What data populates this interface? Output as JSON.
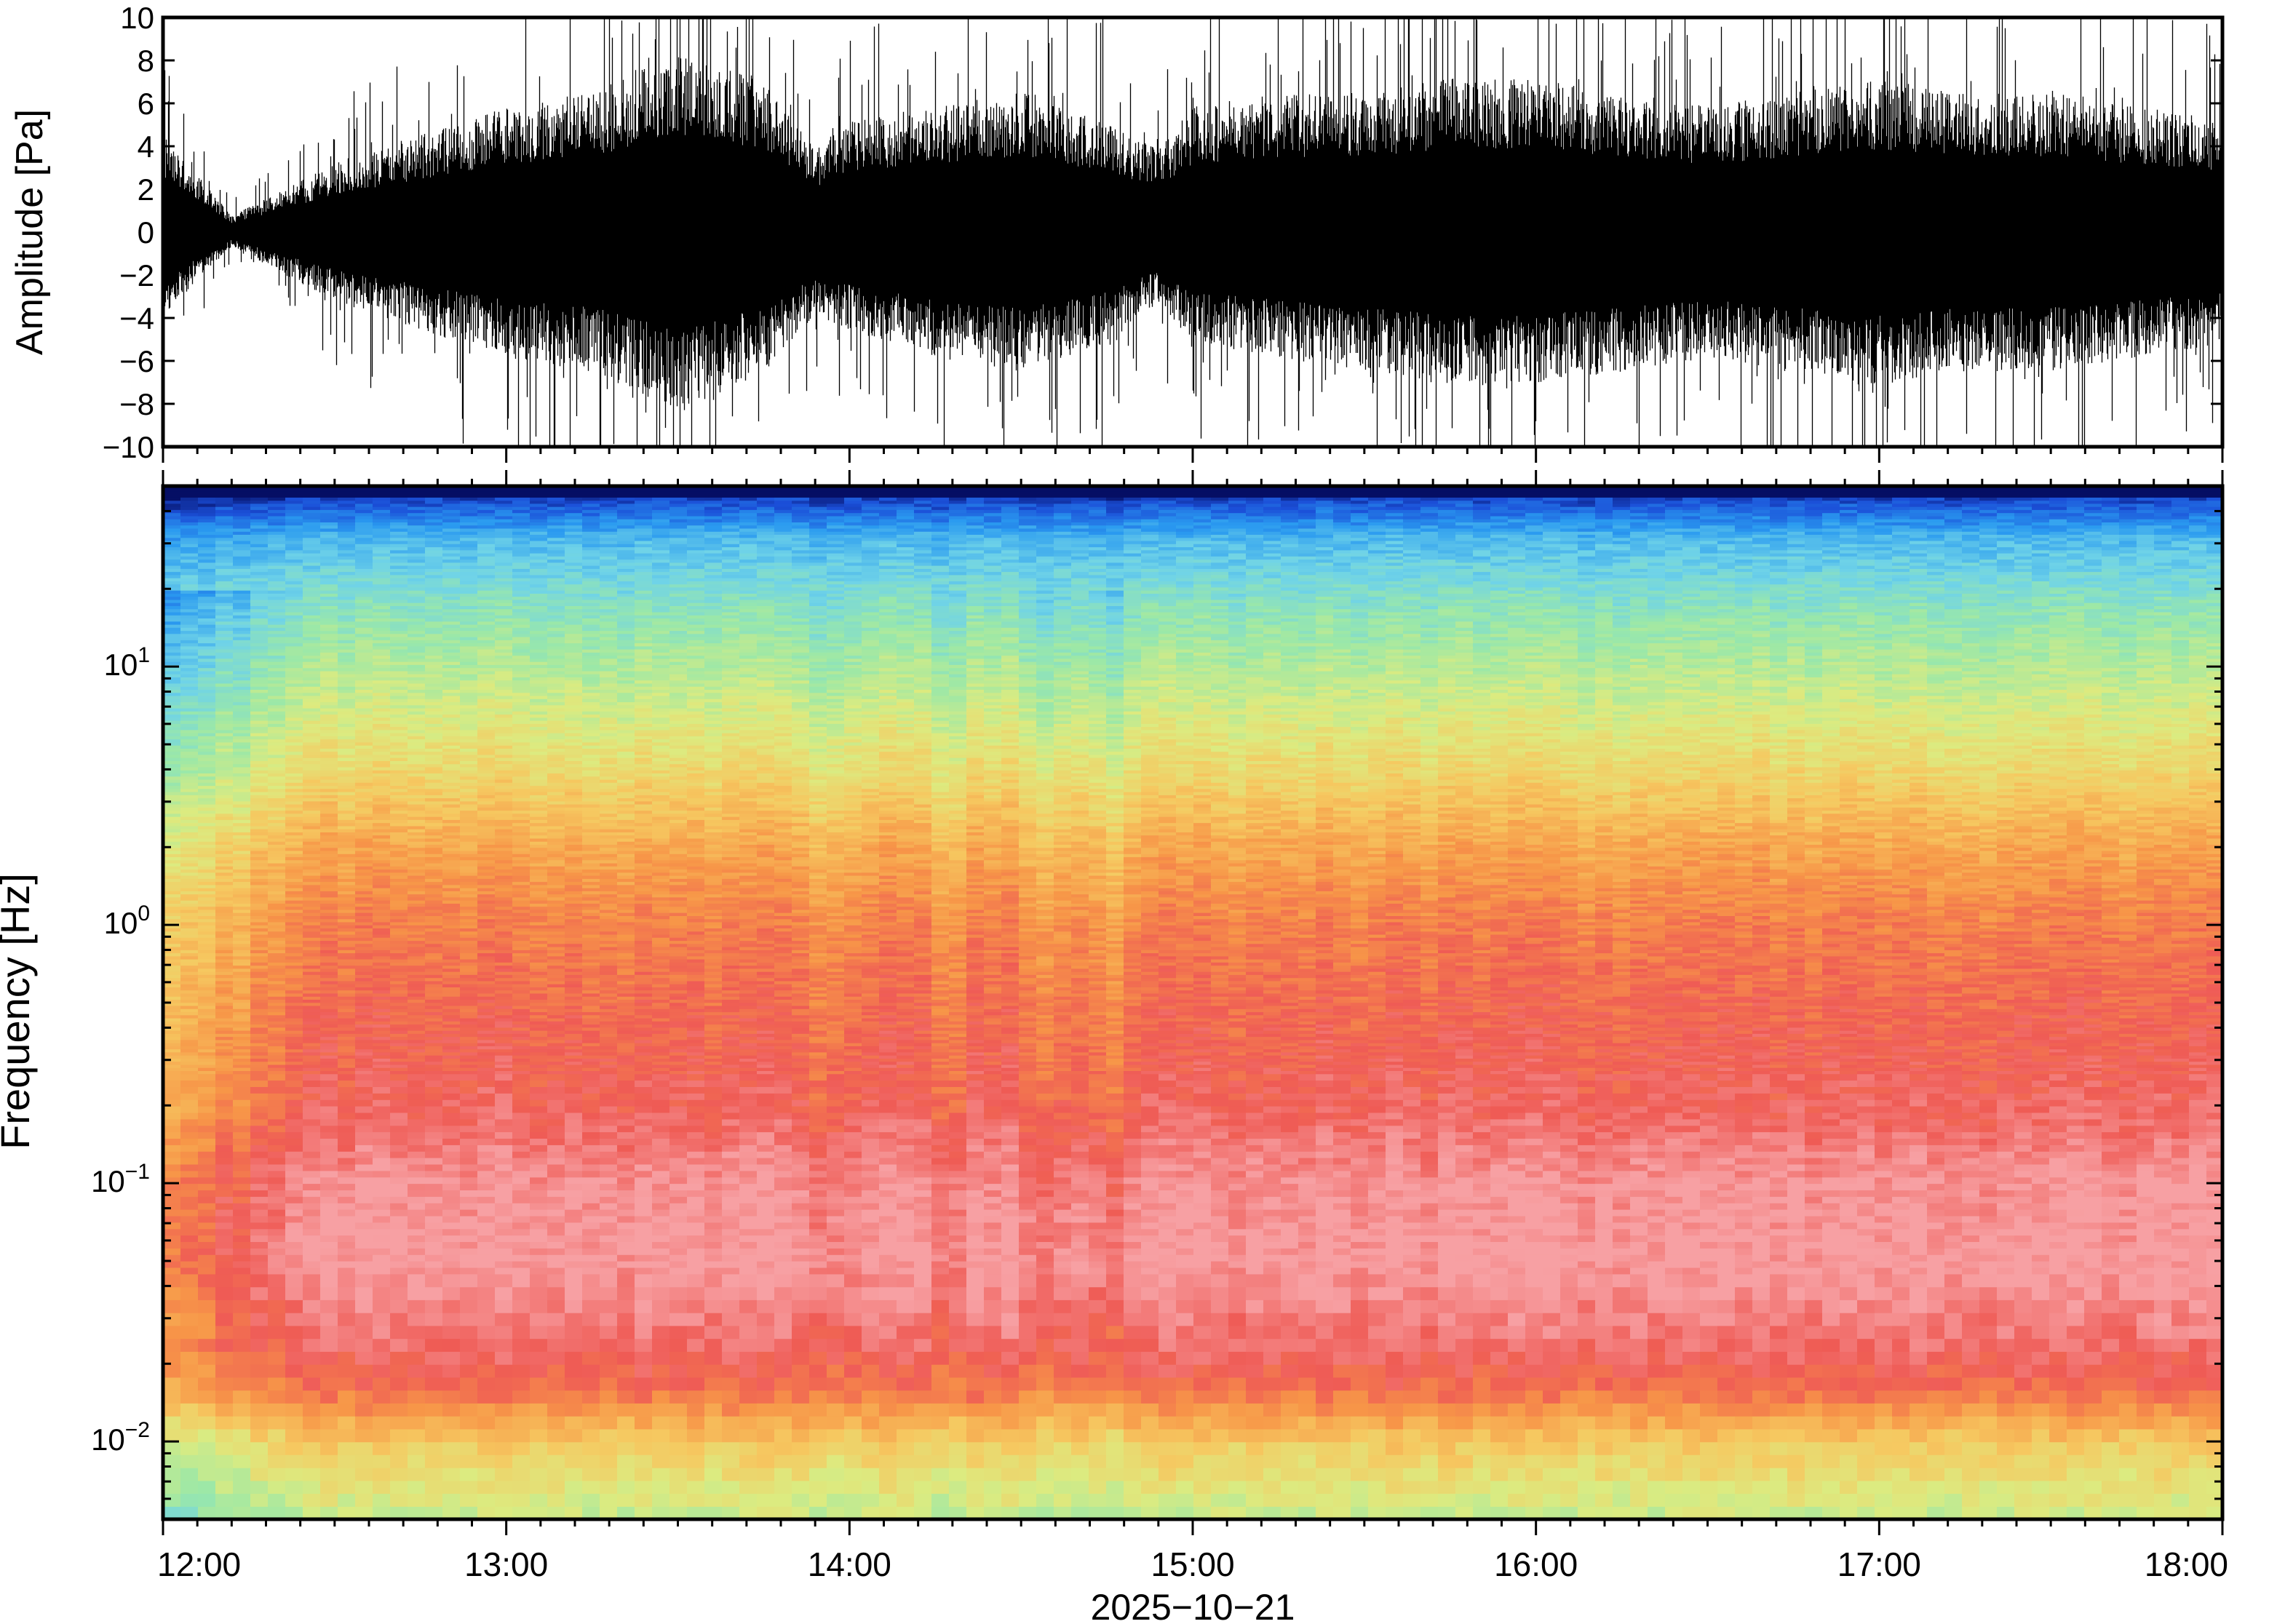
{
  "chart_data": [
    {
      "type": "line",
      "panel": "waveform",
      "ylabel": "Amplitude [Pa]",
      "ylim": [
        -10,
        10
      ],
      "y_ticks": [
        "10",
        "8",
        "6",
        "4",
        "2",
        "0",
        "−2",
        "−4",
        "−6",
        "−8",
        "−10"
      ],
      "y_tick_values": [
        10,
        8,
        6,
        4,
        2,
        0,
        -2,
        -4,
        -6,
        -8,
        -10
      ],
      "x_range": [
        "12:00",
        "18:00"
      ],
      "series": [
        {
          "color": "#000000",
          "envelope_hours": [
            12.0,
            12.2,
            12.35,
            12.5,
            12.75,
            13.0,
            13.25,
            13.5,
            13.75,
            13.9,
            14.0,
            14.25,
            14.5,
            14.75,
            14.9,
            15.0,
            15.25,
            15.5,
            15.75,
            16.0,
            16.25,
            16.5,
            16.75,
            17.0,
            17.25,
            17.5,
            17.75,
            18.0
          ],
          "envelope_pos_pa": [
            3.5,
            0.6,
            1.5,
            2.5,
            3.5,
            4.5,
            5.0,
            6.5,
            5.5,
            3.0,
            4.0,
            4.5,
            5.0,
            4.0,
            3.0,
            4.5,
            5.0,
            5.0,
            5.5,
            5.5,
            5.0,
            4.5,
            5.0,
            5.5,
            5.0,
            5.0,
            4.5,
            4.0
          ],
          "envelope_neg_pa": [
            -3.0,
            -0.5,
            -1.5,
            -2.5,
            -3.5,
            -4.5,
            -5.0,
            -6.5,
            -5.0,
            -3.0,
            -3.5,
            -4.5,
            -5.0,
            -4.0,
            -2.5,
            -4.0,
            -4.5,
            -5.0,
            -5.5,
            -5.5,
            -5.0,
            -4.5,
            -5.0,
            -5.5,
            -5.0,
            -5.0,
            -4.5,
            -4.0
          ]
        }
      ]
    },
    {
      "type": "heatmap",
      "panel": "spectrogram",
      "ylabel": "Frequency [Hz]",
      "xlabel": "2025−10−21",
      "y_scale": "log",
      "ylim_hz": [
        0.005,
        50
      ],
      "y_tick_base": "10",
      "y_tick_exponents": [
        "1",
        "0",
        "−1",
        "−2"
      ],
      "y_tick_values": [
        10,
        1,
        0.1,
        0.01
      ],
      "x_ticks": [
        "12:00",
        "13:00",
        "14:00",
        "15:00",
        "16:00",
        "17:00",
        "18:00"
      ],
      "x_tick_hours": [
        12,
        13,
        14,
        15,
        16,
        17,
        18
      ],
      "colormap": [
        "#00004a",
        "#1b4fd8",
        "#2a9af0",
        "#6fd3e8",
        "#9be8a8",
        "#dceb80",
        "#f6c860",
        "#f79648",
        "#ef5b55",
        "#f7a0a3"
      ],
      "colormap_order": "low to high power",
      "bands_log10_hz": [
        -2.3,
        -2.0,
        -1.8,
        -1.6,
        -1.3,
        -1.0,
        -0.7,
        -0.3,
        0.0,
        0.3,
        0.6,
        0.9,
        1.2,
        1.5,
        1.68
      ],
      "band_levels": [
        0.52,
        0.66,
        0.85,
        0.93,
        1.0,
        0.98,
        0.9,
        0.86,
        0.82,
        0.74,
        0.62,
        0.52,
        0.42,
        0.28,
        0.06
      ]
    }
  ]
}
